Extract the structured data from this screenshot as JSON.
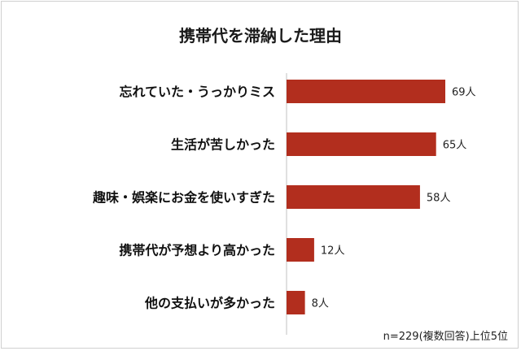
{
  "chart_data": {
    "type": "bar",
    "orientation": "horizontal",
    "title": "携帯代を滞納した理由",
    "categories": [
      "忘れていた・うっかりミス",
      "生活が苦しかった",
      "趣味・娯楽にお金を使いすぎた",
      "携帯代が予想より高かった",
      "他の支払いが多かった"
    ],
    "values": [
      69,
      65,
      58,
      12,
      8
    ],
    "value_labels": [
      "69人",
      "65人",
      "58人",
      "12人",
      "8人"
    ],
    "unit": "人",
    "xlim": [
      0,
      69
    ],
    "grid": false,
    "note": "n=229(複数回答)上位5位",
    "colors": {
      "bar": "#b22e1e"
    }
  }
}
